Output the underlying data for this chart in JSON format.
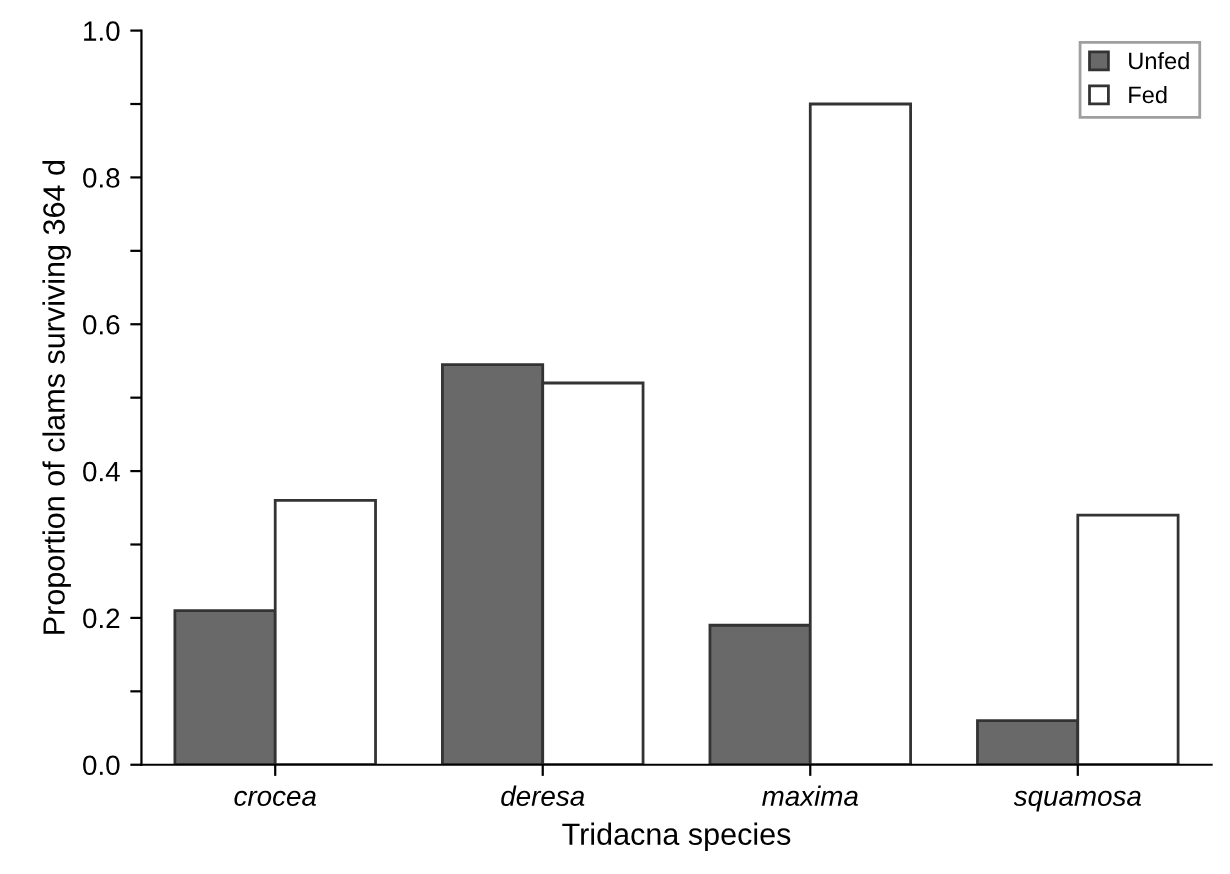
{
  "chart_data": {
    "type": "bar",
    "xlabel": "Tridacna species",
    "ylabel": "Proportion of clams surviving 364 d",
    "categories": [
      "crocea",
      "deresa",
      "maxima",
      "squamosa"
    ],
    "series": [
      {
        "name": "Unfed",
        "color": "#696969",
        "values": [
          0.21,
          0.545,
          0.19,
          0.06
        ]
      },
      {
        "name": "Fed",
        "color": "#ffffff",
        "values": [
          0.36,
          0.52,
          0.9,
          0.34
        ]
      }
    ],
    "ylim": [
      0,
      1.0
    ],
    "yticks": [
      {
        "value": 0.0,
        "label": "0.0"
      },
      {
        "value": 0.1,
        "label": null
      },
      {
        "value": 0.2,
        "label": "0.2"
      },
      {
        "value": 0.3,
        "label": null
      },
      {
        "value": 0.4,
        "label": "0.4"
      },
      {
        "value": 0.5,
        "label": null
      },
      {
        "value": 0.6,
        "label": "0.6"
      },
      {
        "value": 0.7,
        "label": null
      },
      {
        "value": 0.8,
        "label": "0.8"
      },
      {
        "value": 0.9,
        "label": null
      },
      {
        "value": 1.0,
        "label": "1.0"
      }
    ],
    "legend": "top right",
    "grid": false
  }
}
